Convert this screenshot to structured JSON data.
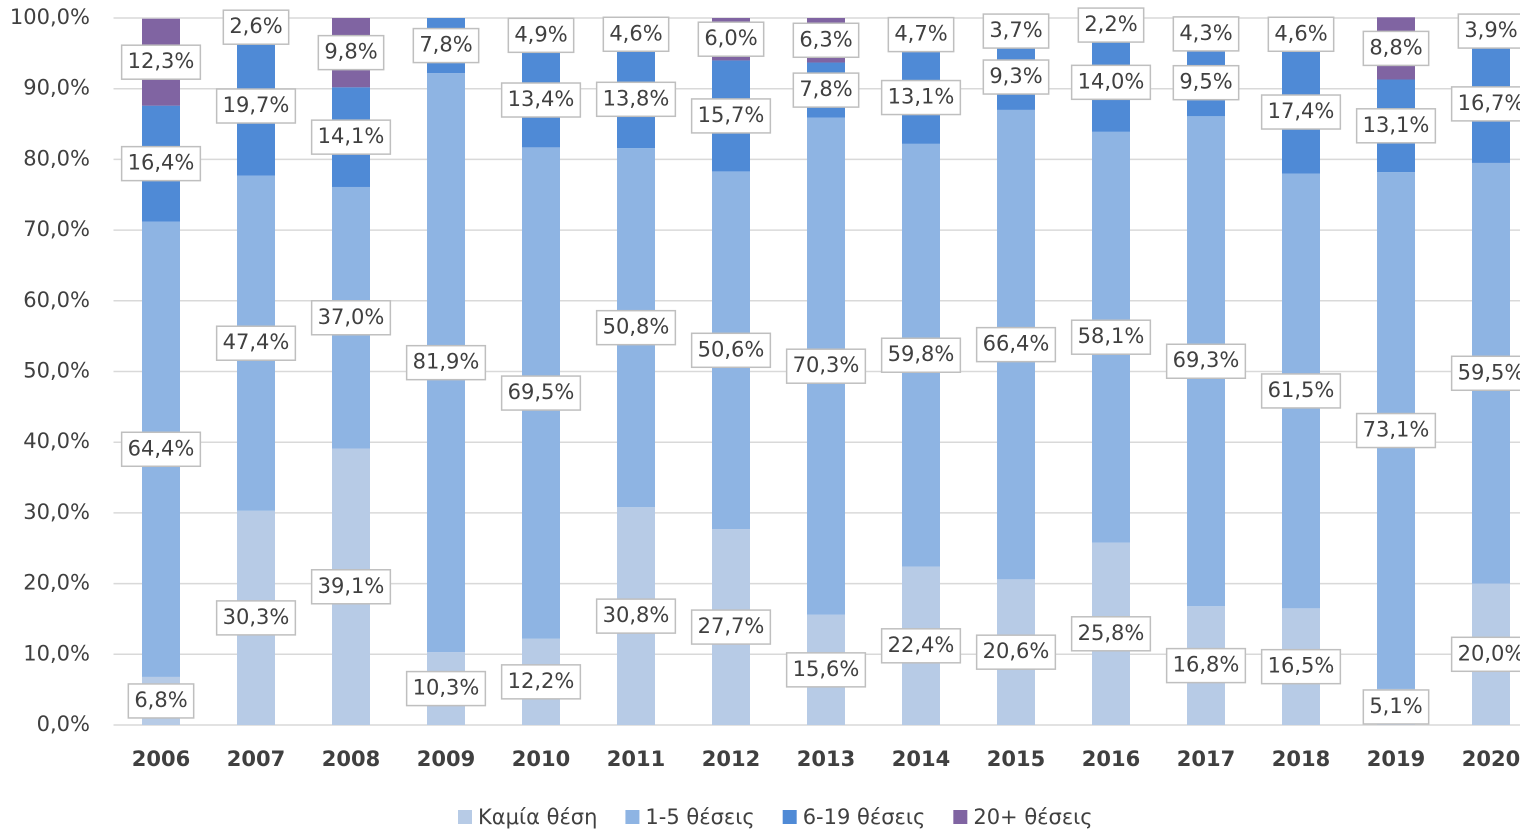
{
  "chart_data": {
    "type": "bar",
    "stacked": true,
    "categories": [
      "2006",
      "2007",
      "2008",
      "2009",
      "2010",
      "2011",
      "2012",
      "2013",
      "2014",
      "2015",
      "2016",
      "2017",
      "2018",
      "2019",
      "2020"
    ],
    "series": [
      {
        "name": "Καμία θέση",
        "color": "#b7cbe6",
        "values": [
          6.8,
          30.3,
          39.1,
          10.3,
          12.2,
          30.8,
          27.7,
          15.6,
          22.4,
          20.6,
          25.8,
          16.8,
          16.5,
          5.1,
          20.0
        ],
        "value_labels": [
          "6,8%",
          "30,3%",
          "39,1%",
          "10,3%",
          "12,2%",
          "30,8%",
          "27,7%",
          "15,6%",
          "22,4%",
          "20,6%",
          "25,8%",
          "16,8%",
          "16,5%",
          "5,1%",
          "20,0%"
        ]
      },
      {
        "name": "1-5 θέσεις",
        "color": "#8eb4e3",
        "values": [
          64.4,
          47.4,
          37.0,
          81.9,
          69.5,
          50.8,
          50.6,
          70.3,
          59.8,
          66.4,
          58.1,
          69.3,
          61.5,
          73.1,
          59.5
        ],
        "value_labels": [
          "64,4%",
          "47,4%",
          "37,0%",
          "81,9%",
          "69,5%",
          "50,8%",
          "50,6%",
          "70,3%",
          "59,8%",
          "66,4%",
          "58,1%",
          "69,3%",
          "61,5%",
          "73,1%",
          "59,5%"
        ]
      },
      {
        "name": "6-19 θέσεις",
        "color": "#4f8ad6",
        "values": [
          16.4,
          19.7,
          14.1,
          7.8,
          13.4,
          13.8,
          15.7,
          7.8,
          13.1,
          9.3,
          14.0,
          9.5,
          17.4,
          13.1,
          16.7
        ],
        "value_labels": [
          "16,4%",
          "19,7%",
          "14,1%",
          "7,8%",
          "13,4%",
          "13,8%",
          "15,7%",
          "7,8%",
          "13,1%",
          "9,3%",
          "14,0%",
          "9,5%",
          "17,4%",
          "13,1%",
          "16,7%"
        ]
      },
      {
        "name": "20+ θέσεις",
        "color": "#8064a2",
        "values": [
          12.3,
          2.6,
          9.8,
          null,
          4.9,
          4.6,
          6.0,
          6.3,
          4.7,
          3.7,
          2.2,
          4.3,
          4.6,
          8.8,
          3.9
        ],
        "value_labels": [
          "12,3%",
          "2,6%",
          "9,8%",
          null,
          "4,9%",
          "4,6%",
          "6,0%",
          "6,3%",
          "4,7%",
          "3,7%",
          "2,2%",
          "4,3%",
          "4,6%",
          "8,8%",
          "3,9%"
        ]
      }
    ],
    "ylim": [
      0,
      100
    ],
    "yticks": [
      {
        "value": 0,
        "label": "0,0%"
      },
      {
        "value": 10,
        "label": "10,0%"
      },
      {
        "value": 20,
        "label": "20,0%"
      },
      {
        "value": 30,
        "label": "30,0%"
      },
      {
        "value": 40,
        "label": "40,0%"
      },
      {
        "value": 50,
        "label": "50,0%"
      },
      {
        "value": 60,
        "label": "60,0%"
      },
      {
        "value": 70,
        "label": "70,0%"
      },
      {
        "value": 80,
        "label": "80,0%"
      },
      {
        "value": 90,
        "label": "90,0%"
      },
      {
        "value": 100,
        "label": "100,0%"
      }
    ],
    "grid": true,
    "legend": "bottom"
  }
}
